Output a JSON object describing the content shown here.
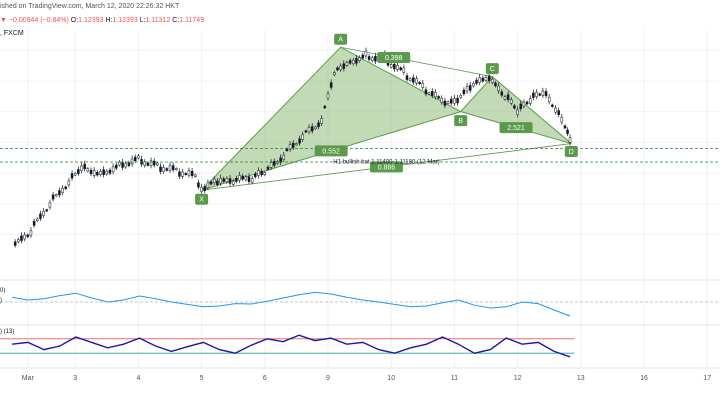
{
  "header": {
    "line1": "ished on TradingView.com, March 12, 2020 22:26:32 HKT",
    "change_arrow": "▼",
    "change": "−0.00944 (−0.84%)",
    "o_label": "O:",
    "o_value": "1.12393",
    "h_label": "H:",
    "h_value": "1.12393",
    "l_label": "L:",
    "l_value": "1.11312",
    "c_label": "C:",
    "c_value": "1.11749",
    "source": ", FXCM",
    "color_up": "#26a69a",
    "color_down": "#ef5350"
  },
  "indicators": {
    "ind1_label": "0)",
    "ind1_label2": ")",
    "ind2_label": ") (13)"
  },
  "chart_data": {
    "type": "line",
    "title": "",
    "x_axis": {
      "ticks": [
        "Mar",
        "3",
        "4",
        "5",
        "6",
        "9",
        "10",
        "11",
        "12",
        "13",
        "16",
        "17"
      ],
      "tick_positions": [
        0.25,
        1,
        2,
        3,
        4,
        5,
        6,
        7,
        8,
        9,
        10,
        11
      ]
    },
    "price": {
      "approx_close": [
        [
          0.0,
          1.0975
        ],
        [
          0.3,
          1.1005
        ],
        [
          0.6,
          1.105
        ],
        [
          0.9,
          1.1085
        ],
        [
          1.1,
          1.111
        ],
        [
          1.4,
          1.1098
        ],
        [
          1.7,
          1.1112
        ],
        [
          2.0,
          1.1122
        ],
        [
          2.3,
          1.111
        ],
        [
          2.6,
          1.1102
        ],
        [
          2.9,
          1.1092
        ],
        [
          3.0,
          1.1072
        ],
        [
          3.2,
          1.1082
        ],
        [
          3.5,
          1.1085
        ],
        [
          3.8,
          1.109
        ],
        [
          4.0,
          1.1098
        ],
        [
          4.3,
          1.1128
        ],
        [
          4.6,
          1.116
        ],
        [
          4.9,
          1.1185
        ],
        [
          5.1,
          1.1265
        ],
        [
          5.3,
          1.128
        ],
        [
          5.6,
          1.129
        ],
        [
          5.9,
          1.1285
        ],
        [
          6.2,
          1.1262
        ],
        [
          6.5,
          1.1238
        ],
        [
          6.8,
          1.1215
        ],
        [
          7.0,
          1.1212
        ],
        [
          7.2,
          1.1232
        ],
        [
          7.5,
          1.1255
        ],
        [
          7.8,
          1.1225
        ],
        [
          8.0,
          1.1198
        ],
        [
          8.2,
          1.1218
        ],
        [
          8.4,
          1.1232
        ],
        [
          8.6,
          1.1205
        ],
        [
          8.75,
          1.1178
        ],
        [
          8.83,
          1.1155
        ]
      ]
    },
    "harmonic_pattern": {
      "name": "H1 bullish bat 1.11400-1.11180 (12 Mar)",
      "points": [
        {
          "label": "X",
          "x": 3.0,
          "y": 1.1072
        },
        {
          "label": "A",
          "x": 5.2,
          "y": 1.1305
        },
        {
          "label": "B",
          "x": 7.1,
          "y": 1.12
        },
        {
          "label": "C",
          "x": 7.6,
          "y": 1.1257
        },
        {
          "label": "D",
          "x": 8.85,
          "y": 1.1148
        }
      ],
      "ratios": [
        {
          "label": "0.552",
          "between": "XB"
        },
        {
          "label": "0.398",
          "between": "AC"
        },
        {
          "label": "2.521",
          "between": "BD"
        },
        {
          "label": "0.886",
          "between": "XD"
        }
      ],
      "fill_color": "#8fbc78",
      "line_color": "#5b9a4c"
    },
    "levels": [
      {
        "name": "dashed-level-1",
        "value": 1.114
      },
      {
        "name": "dashed-level-2",
        "value": 1.1118
      }
    ],
    "indicator1": {
      "type": "line",
      "color": "#2196f3",
      "reference": 0.5,
      "values": [
        0.62,
        0.55,
        0.58,
        0.66,
        0.72,
        0.6,
        0.5,
        0.55,
        0.65,
        0.58,
        0.5,
        0.44,
        0.38,
        0.4,
        0.46,
        0.45,
        0.52,
        0.6,
        0.68,
        0.74,
        0.7,
        0.62,
        0.55,
        0.5,
        0.44,
        0.38,
        0.4,
        0.48,
        0.55,
        0.42,
        0.35,
        0.38,
        0.5,
        0.46,
        0.3,
        0.15
      ]
    },
    "indicator2": {
      "type": "line",
      "color": "#1a1aa6",
      "upper": 0.7,
      "lower": 0.3,
      "upper_color": "#ef5350",
      "lower_color": "#26a69a",
      "values": [
        0.55,
        0.6,
        0.4,
        0.5,
        0.75,
        0.6,
        0.45,
        0.55,
        0.72,
        0.5,
        0.35,
        0.48,
        0.6,
        0.4,
        0.3,
        0.52,
        0.7,
        0.62,
        0.8,
        0.65,
        0.72,
        0.55,
        0.6,
        0.4,
        0.3,
        0.45,
        0.55,
        0.75,
        0.55,
        0.3,
        0.4,
        0.72,
        0.55,
        0.6,
        0.35,
        0.2
      ]
    }
  }
}
